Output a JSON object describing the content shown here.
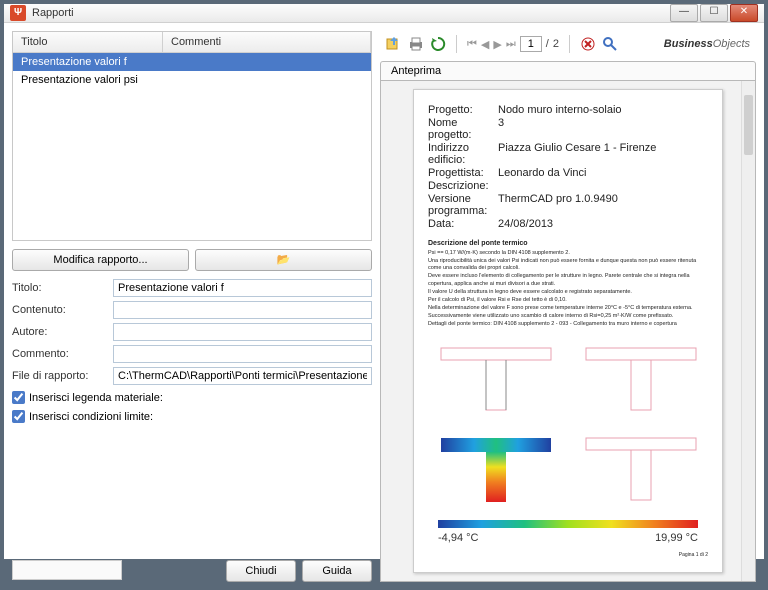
{
  "window": {
    "title": "Rapporti",
    "icon": "Ψ"
  },
  "winbtns": {
    "min": "—",
    "max": "☐",
    "close": "✕"
  },
  "list": {
    "headers": {
      "title": "Titolo",
      "comments": "Commenti"
    },
    "rows": [
      {
        "title": "Presentazione valori f",
        "selected": true
      },
      {
        "title": "Presentazione valori psi",
        "selected": false
      }
    ]
  },
  "buttons": {
    "modify": "Modifica rapporto...",
    "folder": "📂",
    "close": "Chiudi",
    "help": "Guida"
  },
  "form": {
    "labels": {
      "title": "Titolo:",
      "content": "Contenuto:",
      "author": "Autore:",
      "comment": "Commento:",
      "file": "File di rapporto:"
    },
    "values": {
      "title": "Presentazione valori f",
      "content": "",
      "author": "",
      "comment": "",
      "file": "C:\\ThermCAD\\Rapporti\\Ponti termici\\Presentazione valori f.rpt"
    }
  },
  "checks": {
    "legend": "Inserisci legenda materiale:",
    "limits": "Inserisci condizioni limite:"
  },
  "nav": {
    "page": "1",
    "total": "2",
    "sep": "/"
  },
  "tab": "Anteprima",
  "logo": {
    "a": "Business",
    "b": "Objects"
  },
  "report": {
    "header": {
      "Progetto:": "Nodo muro interno-solaio",
      "Nome progetto:": "3",
      "Indirizzo edificio:": "Piazza Giulio Cesare 1 - Firenze",
      "Progettista:": "Leonardo da Vinci",
      "Descrizione:": "",
      "Versione programma:": "ThermCAD pro 1.0.9490",
      "Data:": "24/08/2013"
    },
    "section_title": "Descrizione del ponte termico",
    "body": [
      "Psi == 0,17 W/(m·K) secondo la DIN 4108 supplemento 2.",
      "Una riproducibilità unica dei valori Psi indicati non può essere fornita e dunque questa non può essere ritenuta come una convalida dei propri calcoli.",
      "Deve essere incluso l'elemento di collegamento per le strutture in legno. Parete centrale che si integra nella copertura, applica anche ai muri divisori a due strati.",
      "Il valore U della struttura in legno deve essere calcolato e registrato separatamente.",
      "Per il calcolo di Psi, il valore Rsi e Rse del tetto è di 0,10.",
      "Nella determinazione del valore F sono prese come temperature interne 20°C e -5°C di temperatura esterna.",
      "Successivamente viene utilizzato uno scambio di calore interno di Rsi=0,25 m²·K/W come prefissato.",
      "",
      "Dettagli del ponte termico: DIN 4108 supplemento 2 - 093 - Collegamento tra muro interno e copertura"
    ],
    "grad": {
      "min": "-4,94 °C",
      "max": "19,99 °C"
    },
    "pagelabel": "Pagina 1 di 2"
  },
  "colors": {
    "outline_pink": "#e8a0b0",
    "outline_gray": "#888888",
    "hatch": "#a0a8b0",
    "thermal": [
      "#2040a0",
      "#20a0e0",
      "#20c080",
      "#a0e020",
      "#f0e020",
      "#f08020",
      "#e02020"
    ]
  }
}
